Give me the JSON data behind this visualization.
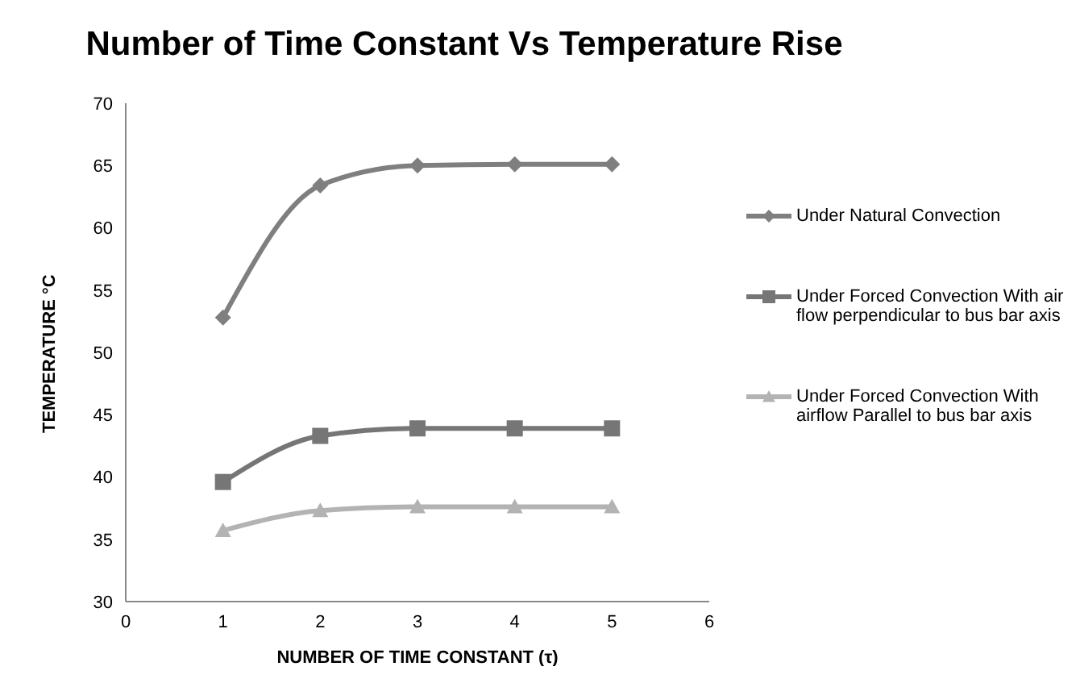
{
  "chart_data": {
    "type": "line",
    "title": "Number of Time Constant Vs Temperature Rise",
    "xlabel": "NUMBER OF TIME CONSTANT (τ)",
    "ylabel": "TEMPERATURE °C",
    "x": [
      1,
      2,
      3,
      4,
      5
    ],
    "xlim": [
      0,
      6
    ],
    "xticks": [
      0,
      1,
      2,
      3,
      4,
      5,
      6
    ],
    "ylim": [
      30,
      70
    ],
    "yticks": [
      30,
      35,
      40,
      45,
      50,
      55,
      60,
      65,
      70
    ],
    "grid": false,
    "legend": "right",
    "line_style": "solid",
    "series": [
      {
        "name": "Under Natural Convection",
        "color": "#7f7f7f",
        "marker": "diamond",
        "values": [
          52.8,
          63.4,
          65.0,
          65.1,
          65.1
        ]
      },
      {
        "name": "Under Forced Convection With air flow perpendicular to bus bar axis",
        "color": "#767676",
        "marker": "square",
        "values": [
          39.6,
          43.3,
          43.9,
          43.9,
          43.9
        ]
      },
      {
        "name": "Under Forced Convection With airflow Parallel to bus bar axis",
        "color": "#b3b3b3",
        "marker": "triangle",
        "values": [
          35.7,
          37.3,
          37.6,
          37.6,
          37.6
        ]
      }
    ]
  }
}
